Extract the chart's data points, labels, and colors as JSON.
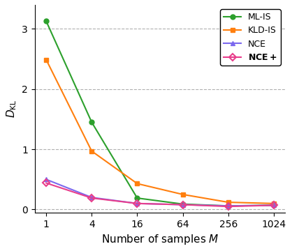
{
  "x_values": [
    1,
    4,
    16,
    64,
    256,
    1024
  ],
  "ml_is": [
    3.13,
    1.45,
    0.19,
    0.09,
    0.06,
    0.07
  ],
  "kld_is": [
    2.49,
    0.97,
    0.43,
    0.25,
    0.12,
    0.1
  ],
  "nce": [
    0.5,
    0.2,
    0.1,
    0.08,
    0.06,
    0.07
  ],
  "nce_plus": [
    0.44,
    0.19,
    0.1,
    0.08,
    0.05,
    0.07
  ],
  "ml_is_color": "#2ca02c",
  "kld_is_color": "#ff7f0e",
  "nce_color": "#7b68ee",
  "nce_plus_color": "#e83e8c",
  "xlabel": "Number of samples $M$",
  "ylabel": "$D_{\\mathrm{KL}}$",
  "ylim": [
    -0.05,
    3.4
  ],
  "yticks": [
    0,
    1,
    2,
    3
  ],
  "xtick_labels": [
    "1",
    "4",
    "16",
    "64",
    "256",
    "1024"
  ],
  "grid_color": "#b0b0b0",
  "legend_labels": [
    "ML-IS",
    "KLD-IS",
    "NCE",
    "\\mathbf{NCE+}"
  ]
}
